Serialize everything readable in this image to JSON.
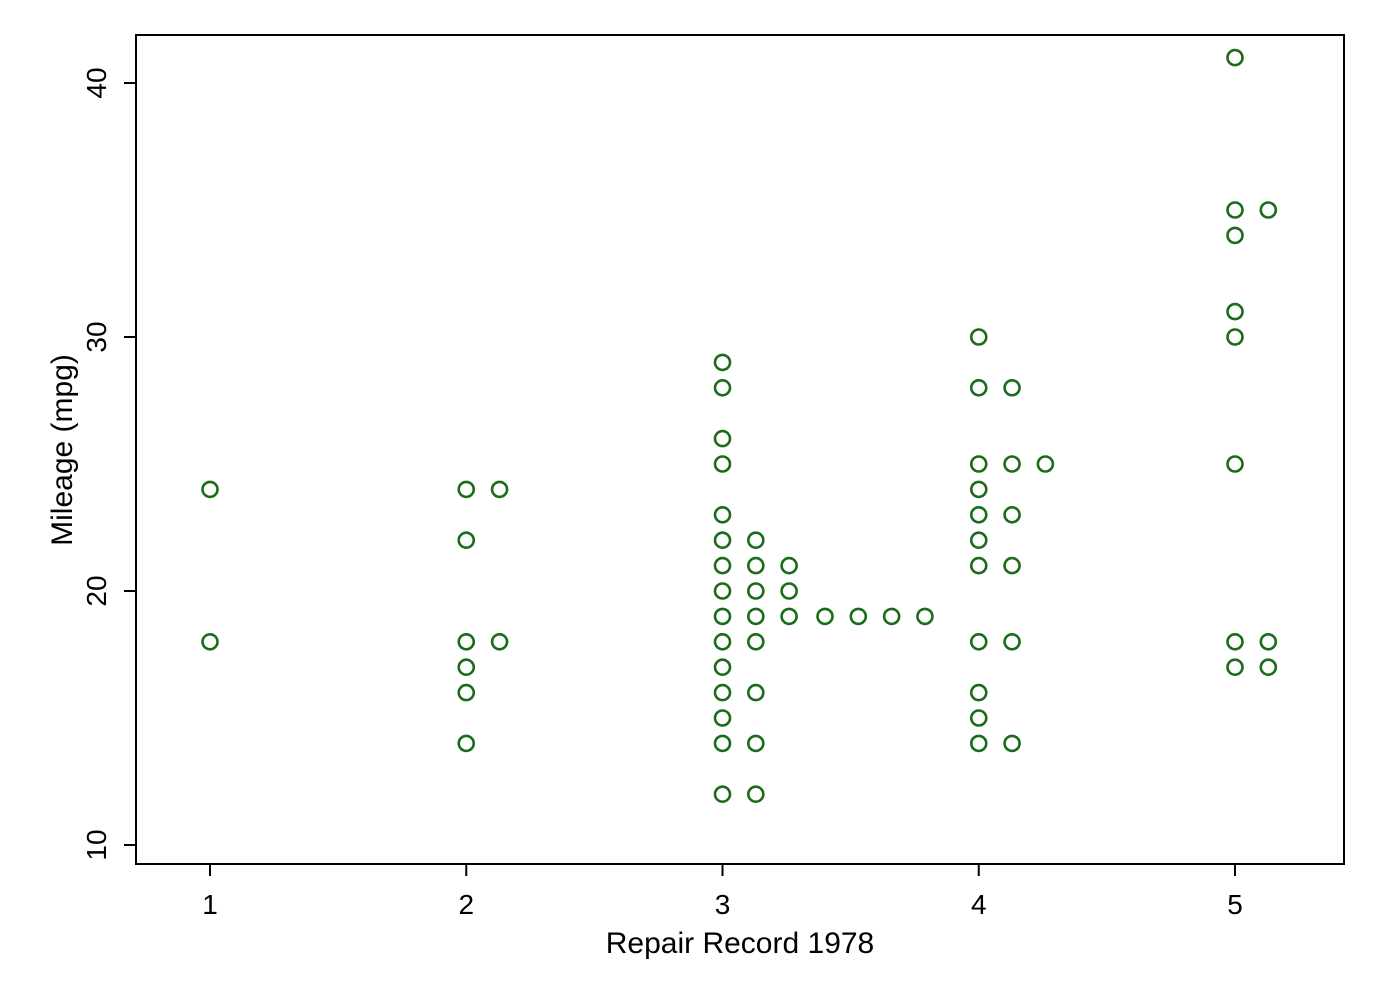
{
  "chart_data": {
    "type": "scatter",
    "title": "",
    "xlabel": "Repair Record 1978",
    "ylabel": "Mileage (mpg)",
    "xlim": [
      0.71,
      5.42
    ],
    "ylim": [
      9.2,
      42.0
    ],
    "x_ticks": [
      1,
      2,
      3,
      4,
      5
    ],
    "y_ticks": [
      10,
      20,
      30,
      40
    ],
    "grid": false,
    "legend": "none",
    "marker": "hollow-circle",
    "marker_color": "#1a6b1a",
    "series": [
      {
        "points": [
          {
            "x": 1,
            "y": 24
          },
          {
            "x": 1,
            "y": 18
          },
          {
            "x": 2,
            "y": 24
          },
          {
            "x": 2.13,
            "y": 24
          },
          {
            "x": 2,
            "y": 22
          },
          {
            "x": 2,
            "y": 18
          },
          {
            "x": 2.13,
            "y": 18
          },
          {
            "x": 2,
            "y": 17
          },
          {
            "x": 2,
            "y": 16
          },
          {
            "x": 2,
            "y": 14
          },
          {
            "x": 3,
            "y": 29
          },
          {
            "x": 3,
            "y": 28
          },
          {
            "x": 3,
            "y": 26
          },
          {
            "x": 3,
            "y": 25
          },
          {
            "x": 3,
            "y": 23
          },
          {
            "x": 3,
            "y": 22
          },
          {
            "x": 3.13,
            "y": 22
          },
          {
            "x": 3,
            "y": 21
          },
          {
            "x": 3.13,
            "y": 21
          },
          {
            "x": 3.26,
            "y": 21
          },
          {
            "x": 3,
            "y": 20
          },
          {
            "x": 3.13,
            "y": 20
          },
          {
            "x": 3.26,
            "y": 20
          },
          {
            "x": 3,
            "y": 19
          },
          {
            "x": 3.13,
            "y": 19
          },
          {
            "x": 3.26,
            "y": 19
          },
          {
            "x": 3.4,
            "y": 19
          },
          {
            "x": 3.53,
            "y": 19
          },
          {
            "x": 3.66,
            "y": 19
          },
          {
            "x": 3.79,
            "y": 19
          },
          {
            "x": 3,
            "y": 18
          },
          {
            "x": 3.13,
            "y": 18
          },
          {
            "x": 3,
            "y": 17
          },
          {
            "x": 3,
            "y": 16
          },
          {
            "x": 3.13,
            "y": 16
          },
          {
            "x": 3,
            "y": 15
          },
          {
            "x": 3,
            "y": 14
          },
          {
            "x": 3.13,
            "y": 14
          },
          {
            "x": 3,
            "y": 12
          },
          {
            "x": 3.13,
            "y": 12
          },
          {
            "x": 4,
            "y": 30
          },
          {
            "x": 4,
            "y": 28
          },
          {
            "x": 4.13,
            "y": 28
          },
          {
            "x": 4,
            "y": 25
          },
          {
            "x": 4.13,
            "y": 25
          },
          {
            "x": 4.26,
            "y": 25
          },
          {
            "x": 4,
            "y": 24
          },
          {
            "x": 4,
            "y": 23
          },
          {
            "x": 4.13,
            "y": 23
          },
          {
            "x": 4,
            "y": 22
          },
          {
            "x": 4,
            "y": 21
          },
          {
            "x": 4.13,
            "y": 21
          },
          {
            "x": 4,
            "y": 18
          },
          {
            "x": 4.13,
            "y": 18
          },
          {
            "x": 4,
            "y": 16
          },
          {
            "x": 4,
            "y": 15
          },
          {
            "x": 4,
            "y": 14
          },
          {
            "x": 4.13,
            "y": 14
          },
          {
            "x": 5,
            "y": 41
          },
          {
            "x": 5,
            "y": 35
          },
          {
            "x": 5.13,
            "y": 35
          },
          {
            "x": 5,
            "y": 34
          },
          {
            "x": 5,
            "y": 31
          },
          {
            "x": 5,
            "y": 30
          },
          {
            "x": 5,
            "y": 25
          },
          {
            "x": 5,
            "y": 18
          },
          {
            "x": 5.13,
            "y": 18
          },
          {
            "x": 5,
            "y": 17
          },
          {
            "x": 5.13,
            "y": 17
          }
        ]
      }
    ]
  }
}
